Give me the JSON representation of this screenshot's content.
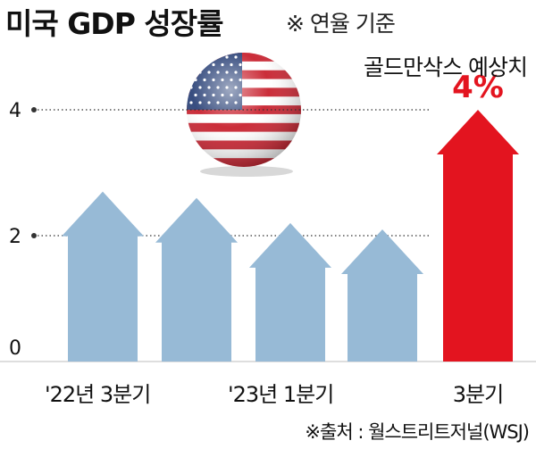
{
  "title": "미국 GDP 성장률",
  "subtitle": "※ 연율 기준",
  "source": "※출처 : 월스트리트저널(WSJ)",
  "annotation": "골드만삭스 예상치",
  "colors": {
    "bar": "#97bad6",
    "highlight": "#e3141f",
    "axis_dots": "#333333",
    "baseline": "#bdbdbd"
  },
  "chart_data": {
    "type": "bar",
    "categories": [
      "'22년 3분기",
      "",
      "'23년 1분기",
      "",
      "3분기"
    ],
    "values": [
      2.7,
      2.6,
      2.2,
      2.1,
      4.0
    ],
    "data_labels": [
      "",
      "",
      "",
      "",
      "4%"
    ],
    "highlight_index": 4,
    "yticks": [
      0,
      2,
      4
    ],
    "ylim": [
      0,
      4.9
    ],
    "grid": "dotted lines at 2 and 4",
    "shape": "arrow",
    "title": "미국 GDP 성장률",
    "xlabel": "",
    "ylabel": ""
  },
  "icons": [
    "us-flag-globe-icon"
  ]
}
